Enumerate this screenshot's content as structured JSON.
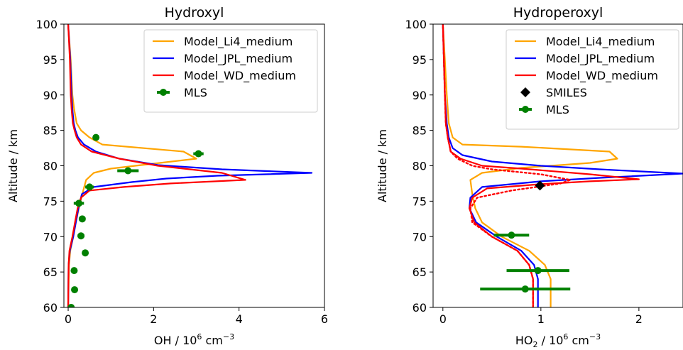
{
  "chart_data": [
    {
      "type": "line",
      "title": "Hydroxyl",
      "xlabel_main": "OH / 10",
      "xlabel_exp": "6",
      "xlabel_unit": " cm",
      "xlabel_unit_exp": "−3",
      "ylabel": "Altitude / km",
      "xlim": [
        -0.1,
        6
      ],
      "ylim": [
        60,
        100
      ],
      "xticks": [
        0,
        2,
        4,
        6
      ],
      "yticks": [
        60,
        65,
        70,
        75,
        80,
        85,
        90,
        95,
        100
      ],
      "legend_position": "top-right",
      "series": [
        {
          "name": "Model_Li4_medium",
          "color": "#ffa500",
          "style": "solid",
          "points": [
            [
              0.0,
              60
            ],
            [
              0.02,
              66
            ],
            [
              0.05,
              68
            ],
            [
              0.12,
              70
            ],
            [
              0.18,
              72
            ],
            [
              0.25,
              74
            ],
            [
              0.33,
              76
            ],
            [
              0.42,
              78
            ],
            [
              0.6,
              79
            ],
            [
              1.0,
              79.6
            ],
            [
              2.0,
              80.3
            ],
            [
              3.0,
              81
            ],
            [
              2.7,
              82
            ],
            [
              0.8,
              83
            ],
            [
              0.5,
              84
            ],
            [
              0.3,
              85
            ],
            [
              0.2,
              86
            ],
            [
              0.14,
              88
            ],
            [
              0.1,
              90
            ],
            [
              0.06,
              95
            ],
            [
              0.0,
              100
            ]
          ]
        },
        {
          "name": "Model_JPL_medium",
          "color": "#0000ff",
          "style": "solid",
          "points": [
            [
              0.0,
              60
            ],
            [
              0.01,
              66
            ],
            [
              0.04,
              68
            ],
            [
              0.12,
              70
            ],
            [
              0.18,
              72
            ],
            [
              0.24,
              74
            ],
            [
              0.32,
              76
            ],
            [
              0.6,
              77
            ],
            [
              1.5,
              77.7
            ],
            [
              2.3,
              78.2
            ],
            [
              3.5,
              78.6
            ],
            [
              5.7,
              79
            ],
            [
              3.6,
              79.5
            ],
            [
              2.1,
              80.1
            ],
            [
              1.2,
              81
            ],
            [
              0.65,
              82
            ],
            [
              0.37,
              83
            ],
            [
              0.23,
              84
            ],
            [
              0.17,
              85
            ],
            [
              0.13,
              86
            ],
            [
              0.1,
              88
            ],
            [
              0.08,
              90
            ],
            [
              0.05,
              95
            ],
            [
              0.0,
              100
            ]
          ]
        },
        {
          "name": "Model_WD_medium",
          "color": "#ff0000",
          "style": "solid",
          "points": [
            [
              0.0,
              60
            ],
            [
              0.01,
              66
            ],
            [
              0.03,
              68
            ],
            [
              0.1,
              70
            ],
            [
              0.16,
              72
            ],
            [
              0.22,
              74
            ],
            [
              0.3,
              75.5
            ],
            [
              0.5,
              76.5
            ],
            [
              1.3,
              77
            ],
            [
              2.4,
              77.5
            ],
            [
              4.15,
              78
            ],
            [
              3.6,
              79
            ],
            [
              2.1,
              80
            ],
            [
              1.2,
              81
            ],
            [
              0.55,
              82
            ],
            [
              0.3,
              83
            ],
            [
              0.2,
              84
            ],
            [
              0.15,
              85
            ],
            [
              0.11,
              86
            ],
            [
              0.08,
              88
            ],
            [
              0.06,
              90
            ],
            [
              0.04,
              95
            ],
            [
              0.0,
              100
            ]
          ]
        }
      ],
      "mls": {
        "name": "MLS",
        "color": "#008000",
        "points": [
          {
            "x": 0.07,
            "y": 60,
            "xerr": 0
          },
          {
            "x": 0.15,
            "y": 62.5,
            "xerr": 0
          },
          {
            "x": 0.14,
            "y": 65.2,
            "xerr": 0
          },
          {
            "x": 0.4,
            "y": 67.7,
            "xerr": 0.04
          },
          {
            "x": 0.3,
            "y": 70.1,
            "xerr": 0.08
          },
          {
            "x": 0.33,
            "y": 72.5,
            "xerr": 0.04
          },
          {
            "x": 0.25,
            "y": 74.7,
            "xerr": 0.12
          },
          {
            "x": 0.5,
            "y": 77,
            "xerr": 0.1
          },
          {
            "x": 1.4,
            "y": 79.3,
            "xerr": 0.25
          },
          {
            "x": 3.05,
            "y": 81.7,
            "xerr": 0.12
          },
          {
            "x": 0.65,
            "y": 84,
            "xerr": 0
          }
        ]
      }
    },
    {
      "type": "line",
      "title": "Hydroperoxyl",
      "xlabel_main": "HO",
      "xlabel_sub": "2",
      "xlabel_mid": " / 10",
      "xlabel_exp": "6",
      "xlabel_unit": " cm",
      "xlabel_unit_exp": "−3",
      "ylabel": "Altitude / km",
      "xlim": [
        -0.1,
        2.45
      ],
      "ylim": [
        60,
        100
      ],
      "xticks": [
        0,
        1,
        2
      ],
      "yticks": [
        60,
        65,
        70,
        75,
        80,
        85,
        90,
        95,
        100
      ],
      "legend_position": "top-right",
      "series": [
        {
          "name": "Model_Li4_medium",
          "color": "#ffa500",
          "style": "solid",
          "points": [
            [
              1.1,
              60
            ],
            [
              1.1,
              64
            ],
            [
              1.04,
              66
            ],
            [
              0.88,
              68
            ],
            [
              0.6,
              70
            ],
            [
              0.4,
              72
            ],
            [
              0.33,
              74
            ],
            [
              0.3,
              76
            ],
            [
              0.28,
              78
            ],
            [
              0.4,
              79
            ],
            [
              0.8,
              79.7
            ],
            [
              1.5,
              80.4
            ],
            [
              1.78,
              81
            ],
            [
              1.7,
              82
            ],
            [
              0.8,
              82.7
            ],
            [
              0.2,
              83
            ],
            [
              0.1,
              84
            ],
            [
              0.06,
              86
            ],
            [
              0.04,
              90
            ],
            [
              0.02,
              95
            ],
            [
              0.0,
              100
            ]
          ]
        },
        {
          "name": "Model_JPL_medium",
          "color": "#0000ff",
          "style": "solid",
          "points": [
            [
              0.97,
              60
            ],
            [
              0.97,
              64
            ],
            [
              0.93,
              66
            ],
            [
              0.8,
              68
            ],
            [
              0.55,
              70
            ],
            [
              0.34,
              72
            ],
            [
              0.27,
              74
            ],
            [
              0.28,
              75.5
            ],
            [
              0.4,
              77
            ],
            [
              1.0,
              77.8
            ],
            [
              1.6,
              78.3
            ],
            [
              2.45,
              78.9
            ],
            [
              1.6,
              79.5
            ],
            [
              1.0,
              80
            ],
            [
              0.5,
              80.6
            ],
            [
              0.2,
              81.5
            ],
            [
              0.1,
              82.5
            ],
            [
              0.06,
              84
            ],
            [
              0.04,
              86
            ],
            [
              0.02,
              90
            ],
            [
              0.01,
              95
            ],
            [
              0.0,
              100
            ]
          ]
        },
        {
          "name": "Model_WD_medium",
          "color": "#ff0000",
          "style": "solid",
          "points": [
            [
              0.92,
              60
            ],
            [
              0.92,
              64
            ],
            [
              0.88,
              66
            ],
            [
              0.76,
              68
            ],
            [
              0.5,
              70
            ],
            [
              0.32,
              72
            ],
            [
              0.27,
              74
            ],
            [
              0.3,
              75.5
            ],
            [
              0.45,
              76.8
            ],
            [
              1.0,
              77.4
            ],
            [
              1.5,
              77.8
            ],
            [
              2.0,
              78.1
            ],
            [
              1.5,
              78.8
            ],
            [
              0.8,
              79.6
            ],
            [
              0.4,
              80
            ],
            [
              0.18,
              81
            ],
            [
              0.08,
              82
            ],
            [
              0.05,
              84
            ],
            [
              0.03,
              86
            ],
            [
              0.02,
              90
            ],
            [
              0.01,
              95
            ],
            [
              0.0,
              100
            ]
          ]
        },
        {
          "name": "Model_WD_medium",
          "color": "#ff0000",
          "style": "dotted",
          "points": [
            [
              0.92,
              60
            ],
            [
              0.92,
              64
            ],
            [
              0.88,
              66
            ],
            [
              0.76,
              68
            ],
            [
              0.5,
              70
            ],
            [
              0.3,
              72
            ],
            [
              0.28,
              74
            ],
            [
              0.35,
              75.5
            ],
            [
              0.7,
              76.5
            ],
            [
              1.2,
              77.5
            ],
            [
              1.3,
              78
            ],
            [
              1.0,
              78.8
            ],
            [
              0.5,
              79.5
            ],
            [
              0.3,
              80
            ],
            [
              0.15,
              81
            ],
            [
              0.08,
              82
            ],
            [
              0.05,
              84
            ],
            [
              0.03,
              86
            ],
            [
              0.02,
              90
            ],
            [
              0.01,
              95
            ],
            [
              0.0,
              100
            ]
          ]
        }
      ],
      "smiles": {
        "name": "SMILES",
        "color": "#000000",
        "points": [
          {
            "x": 0.99,
            "y": 77.2
          }
        ]
      },
      "mls": {
        "name": "MLS",
        "color": "#008000",
        "points": [
          {
            "x": 0.7,
            "y": 70.2,
            "xerr": 0.18
          },
          {
            "x": 0.97,
            "y": 65.2,
            "xerr": 0.32
          },
          {
            "x": 0.84,
            "y": 62.6,
            "xerr": 0.46
          }
        ]
      }
    }
  ]
}
